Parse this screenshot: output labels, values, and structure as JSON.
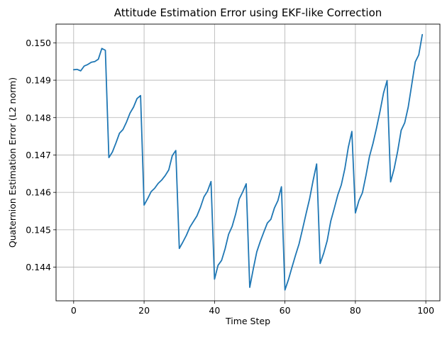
{
  "chart_data": {
    "type": "line",
    "title": "Attitude Estimation Error using EKF-like Correction",
    "xlabel": "Time Step",
    "ylabel": "Quaternion Estimation Error (L2 norm)",
    "xlim": [
      -5,
      104
    ],
    "ylim": [
      0.1431,
      0.1505
    ],
    "xticks": [
      0,
      20,
      40,
      60,
      80,
      100
    ],
    "yticks": [
      0.144,
      0.145,
      0.146,
      0.147,
      0.148,
      0.149,
      0.15
    ],
    "ytick_labels": [
      "0.144",
      "0.145",
      "0.146",
      "0.147",
      "0.148",
      "0.149",
      "0.150"
    ],
    "grid": true,
    "series": [
      {
        "color": "#1f77b4",
        "x": [
          0,
          1,
          2,
          3,
          4,
          5,
          6,
          7,
          8,
          9,
          10,
          11,
          12,
          13,
          14,
          15,
          16,
          17,
          18,
          19,
          20,
          21,
          22,
          23,
          24,
          25,
          26,
          27,
          28,
          29,
          30,
          31,
          32,
          33,
          34,
          35,
          36,
          37,
          38,
          39,
          40,
          41,
          42,
          43,
          44,
          45,
          46,
          47,
          48,
          49,
          50,
          51,
          52,
          53,
          54,
          55,
          56,
          57,
          58,
          59,
          60,
          61,
          62,
          63,
          64,
          65,
          66,
          67,
          68,
          69,
          70,
          71,
          72,
          73,
          74,
          75,
          76,
          77,
          78,
          79,
          80,
          81,
          82,
          83,
          84,
          85,
          86,
          87,
          88,
          89,
          90,
          91,
          92,
          93,
          94,
          95,
          96,
          97,
          98,
          99
        ],
        "y": [
          0.14928,
          0.14929,
          0.14925,
          0.14938,
          0.14942,
          0.14948,
          0.1495,
          0.14956,
          0.14985,
          0.1498,
          0.14693,
          0.14708,
          0.14732,
          0.14758,
          0.14768,
          0.14788,
          0.14812,
          0.14828,
          0.14851,
          0.14859,
          0.14566,
          0.14583,
          0.14602,
          0.14611,
          0.14624,
          0.14633,
          0.14645,
          0.1466,
          0.14698,
          0.14712,
          0.1445,
          0.14467,
          0.14485,
          0.14507,
          0.14522,
          0.14537,
          0.1456,
          0.14588,
          0.14603,
          0.14629,
          0.14368,
          0.14405,
          0.14418,
          0.14449,
          0.14488,
          0.14509,
          0.14542,
          0.14582,
          0.14601,
          0.14623,
          0.14346,
          0.14395,
          0.14441,
          0.14469,
          0.14494,
          0.14518,
          0.14528,
          0.14558,
          0.14578,
          0.14615,
          0.14339,
          0.14367,
          0.144,
          0.14432,
          0.14462,
          0.14502,
          0.14543,
          0.14583,
          0.14632,
          0.14676,
          0.1441,
          0.14437,
          0.14471,
          0.14523,
          0.14557,
          0.14593,
          0.1462,
          0.14663,
          0.14721,
          0.14763,
          0.14545,
          0.14578,
          0.14599,
          0.14645,
          0.14696,
          0.14731,
          0.14772,
          0.14817,
          0.14866,
          0.14899,
          0.14628,
          0.14663,
          0.1471,
          0.14766,
          0.14786,
          0.14828,
          0.14888,
          0.14949,
          0.14968,
          0.15022
        ]
      }
    ]
  }
}
